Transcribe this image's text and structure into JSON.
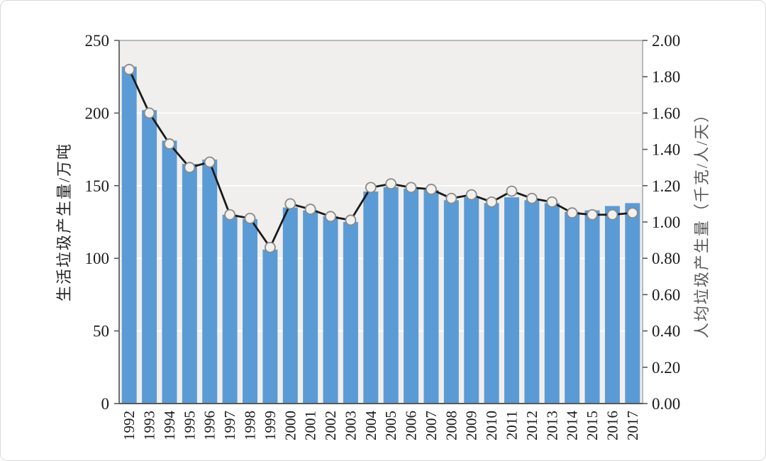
{
  "chart_data": {
    "type": "bar+line dual-axis",
    "categories": [
      "1992",
      "1993",
      "1994",
      "1995",
      "1996",
      "1997",
      "1998",
      "1999",
      "2000",
      "2001",
      "2002",
      "2003",
      "2004",
      "2005",
      "2006",
      "2007",
      "2008",
      "2009",
      "2010",
      "2011",
      "2012",
      "2013",
      "2014",
      "2015",
      "2016",
      "2017"
    ],
    "series": [
      {
        "name": "生活垃圾产生量",
        "type": "bar",
        "axis": "left",
        "values": [
          232,
          202,
          181,
          165,
          168,
          130,
          127,
          106,
          135,
          133,
          129,
          125,
          146,
          149,
          148,
          147,
          140,
          142,
          138,
          142,
          140,
          138,
          132,
          133,
          136,
          138
        ]
      },
      {
        "name": "人均垃圾产生量",
        "type": "line",
        "axis": "right",
        "values": [
          1.84,
          1.6,
          1.43,
          1.3,
          1.33,
          1.04,
          1.02,
          0.86,
          1.1,
          1.07,
          1.03,
          1.01,
          1.19,
          1.21,
          1.19,
          1.18,
          1.13,
          1.15,
          1.11,
          1.17,
          1.13,
          1.11,
          1.05,
          1.04,
          1.04,
          1.05
        ]
      }
    ],
    "left_axis": {
      "title": "生活垃圾产生量/万吨",
      "min": 0,
      "max": 250,
      "ticks": [
        250,
        200,
        150,
        100,
        50,
        0
      ]
    },
    "right_axis": {
      "title": "人均垃圾产生量（千克/人/天）",
      "min": 0,
      "max": 2,
      "ticks": [
        "2.00",
        "1.80",
        "1.60",
        "1.40",
        "1.20",
        "1.00",
        "0.80",
        "0.60",
        "0.40",
        "0.20",
        "0.00"
      ]
    },
    "grid": true,
    "legend": null,
    "colors": {
      "bar": "#5B9BD5",
      "line": "#1a1a1a",
      "marker_fill": "#f2f1ee",
      "marker_stroke": "#8a8a8a",
      "plot_bg": "#f0efed",
      "gridline": "#ffffff",
      "plot_border": "#a6a6a6",
      "axis_dark": "#595959"
    }
  }
}
